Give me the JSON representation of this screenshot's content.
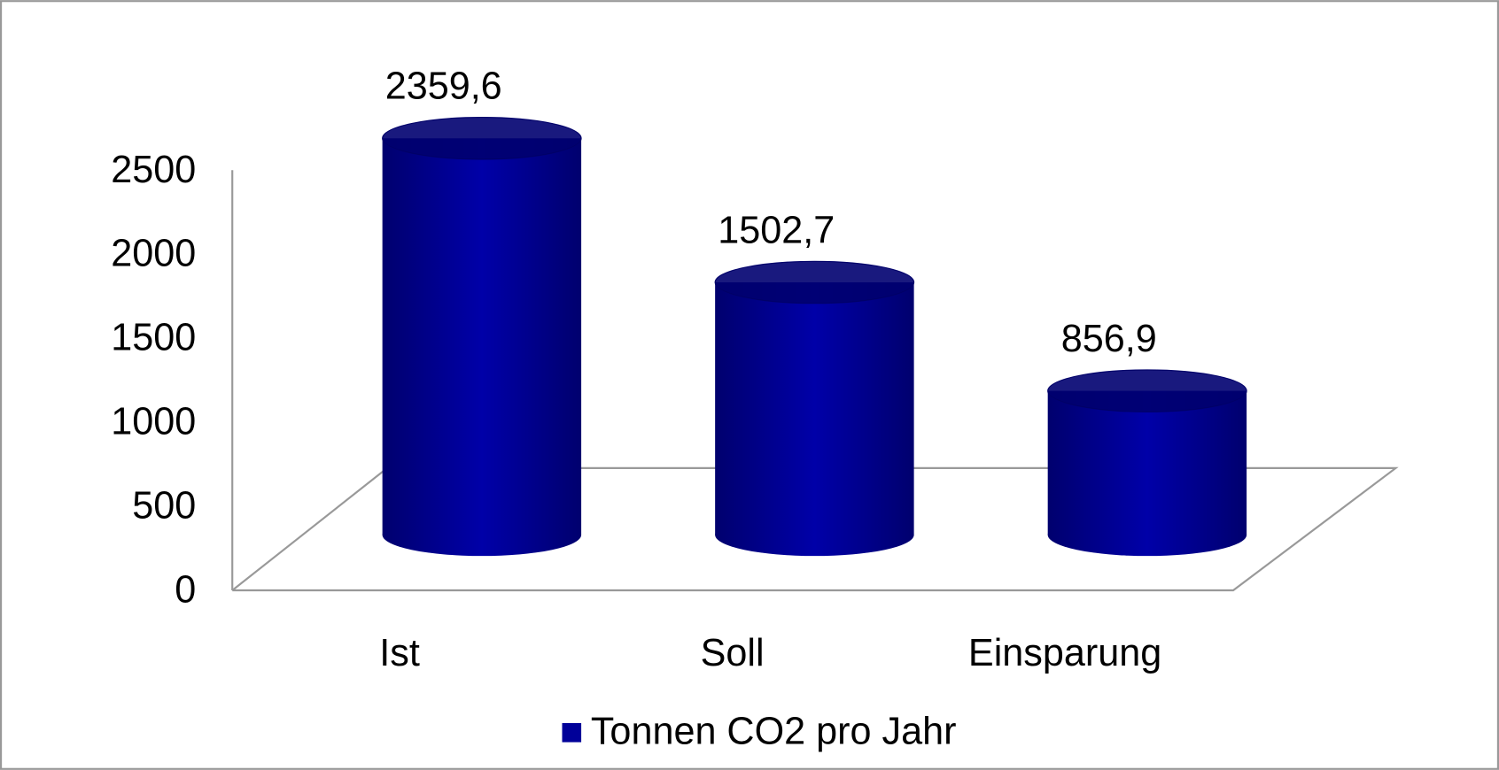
{
  "chart_data": {
    "type": "bar3d",
    "categories": [
      "Ist",
      "Soll",
      "Einsparung"
    ],
    "series": [
      {
        "name": "Tonnen CO2 pro Jahr",
        "color": "#000099",
        "values": [
          2359.6,
          1502.7,
          856.9
        ],
        "value_labels": [
          "2359,6",
          "1502,7",
          "856,9"
        ]
      }
    ],
    "ylim": [
      0,
      2500
    ],
    "yticks": [
      0,
      500,
      1000,
      1500,
      2000,
      2500
    ],
    "grid": false,
    "legend": "bottom"
  }
}
